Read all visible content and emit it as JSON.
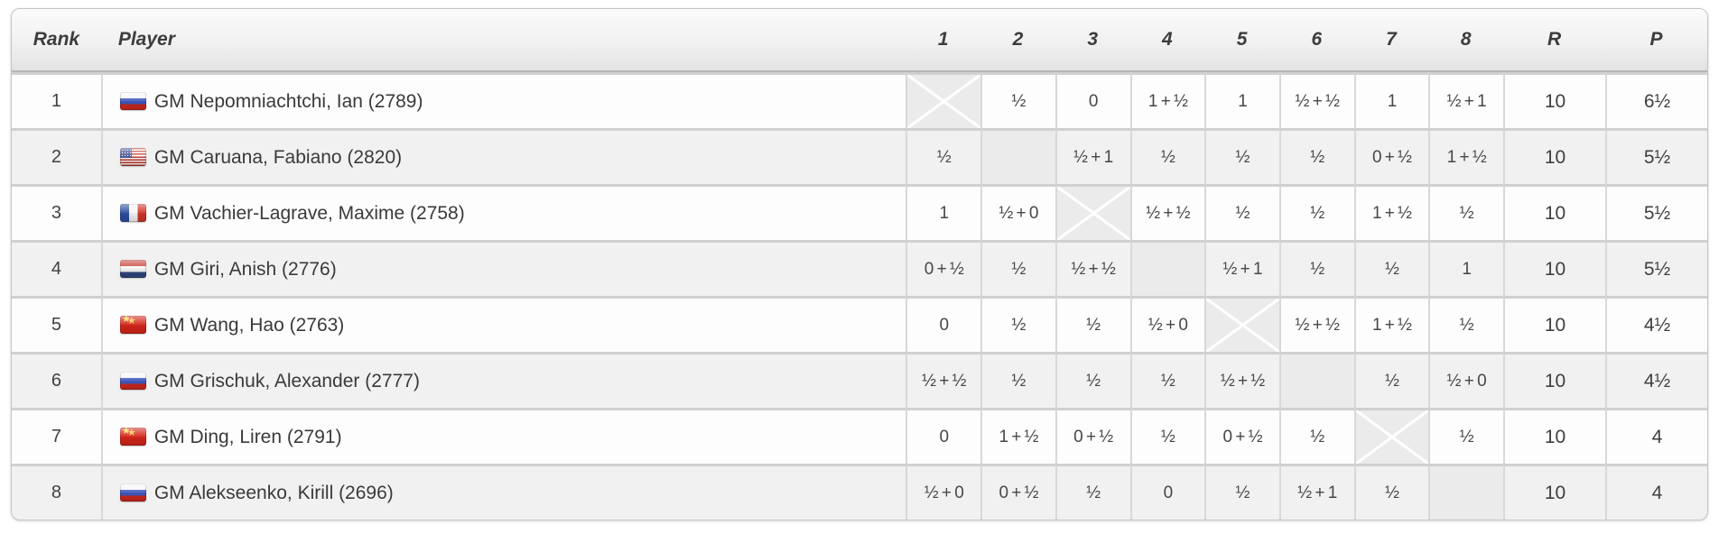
{
  "headers": {
    "rank": "Rank",
    "player": "Player",
    "rounds": [
      "1",
      "2",
      "3",
      "4",
      "5",
      "6",
      "7",
      "8"
    ],
    "rating_games": "R",
    "points": "P"
  },
  "players": [
    {
      "rank": "1",
      "flag": "russia",
      "label": "GM Nepomniachtchi, Ian (2789)",
      "results": [
        null,
        "½",
        "0",
        "1 + ½",
        "1",
        "½ + ½",
        "1",
        "½ + 1"
      ],
      "rating_games": "10",
      "points": "6½"
    },
    {
      "rank": "2",
      "flag": "usa",
      "label": "GM Caruana, Fabiano (2820)",
      "results": [
        "½",
        null,
        "½ + 1",
        "½",
        "½",
        "½",
        "0 + ½",
        "1 + ½"
      ],
      "rating_games": "10",
      "points": "5½"
    },
    {
      "rank": "3",
      "flag": "france",
      "label": "GM Vachier-Lagrave, Maxime (2758)",
      "results": [
        "1",
        "½ + 0",
        null,
        "½ + ½",
        "½",
        "½",
        "1 + ½",
        "½"
      ],
      "rating_games": "10",
      "points": "5½"
    },
    {
      "rank": "4",
      "flag": "netherlands",
      "label": "GM Giri, Anish (2776)",
      "results": [
        "0 + ½",
        "½",
        "½ + ½",
        null,
        "½ + 1",
        "½",
        "½",
        "1"
      ],
      "rating_games": "10",
      "points": "5½"
    },
    {
      "rank": "5",
      "flag": "china",
      "label": "GM Wang, Hao (2763)",
      "results": [
        "0",
        "½",
        "½",
        "½ + 0",
        null,
        "½ + ½",
        "1 + ½",
        "½"
      ],
      "rating_games": "10",
      "points": "4½"
    },
    {
      "rank": "6",
      "flag": "russia",
      "label": "GM Grischuk, Alexander (2777)",
      "results": [
        "½ + ½",
        "½",
        "½",
        "½",
        "½ + ½",
        null,
        "½",
        "½ + 0"
      ],
      "rating_games": "10",
      "points": "4½"
    },
    {
      "rank": "7",
      "flag": "china",
      "label": "GM Ding, Liren (2791)",
      "results": [
        "0",
        "1 + ½",
        "0 + ½",
        "½",
        "0 + ½",
        "½",
        null,
        "½"
      ],
      "rating_games": "10",
      "points": "4"
    },
    {
      "rank": "8",
      "flag": "russia",
      "label": "GM Alekseenko, Kirill (2696)",
      "results": [
        "½ + 0",
        "0 + ½",
        "½",
        "0",
        "½",
        "½ + 1",
        "½",
        null
      ],
      "rating_games": "10",
      "points": "4"
    }
  ],
  "colors": {
    "header_text": "#3c3c3c",
    "cell_text": "#474747",
    "row_alt_background": "#f1f1f1",
    "diagonal_cell_background": "#ebebeb",
    "grid_line": "#d0d0d0",
    "outer_border": "#c2c2c2"
  }
}
